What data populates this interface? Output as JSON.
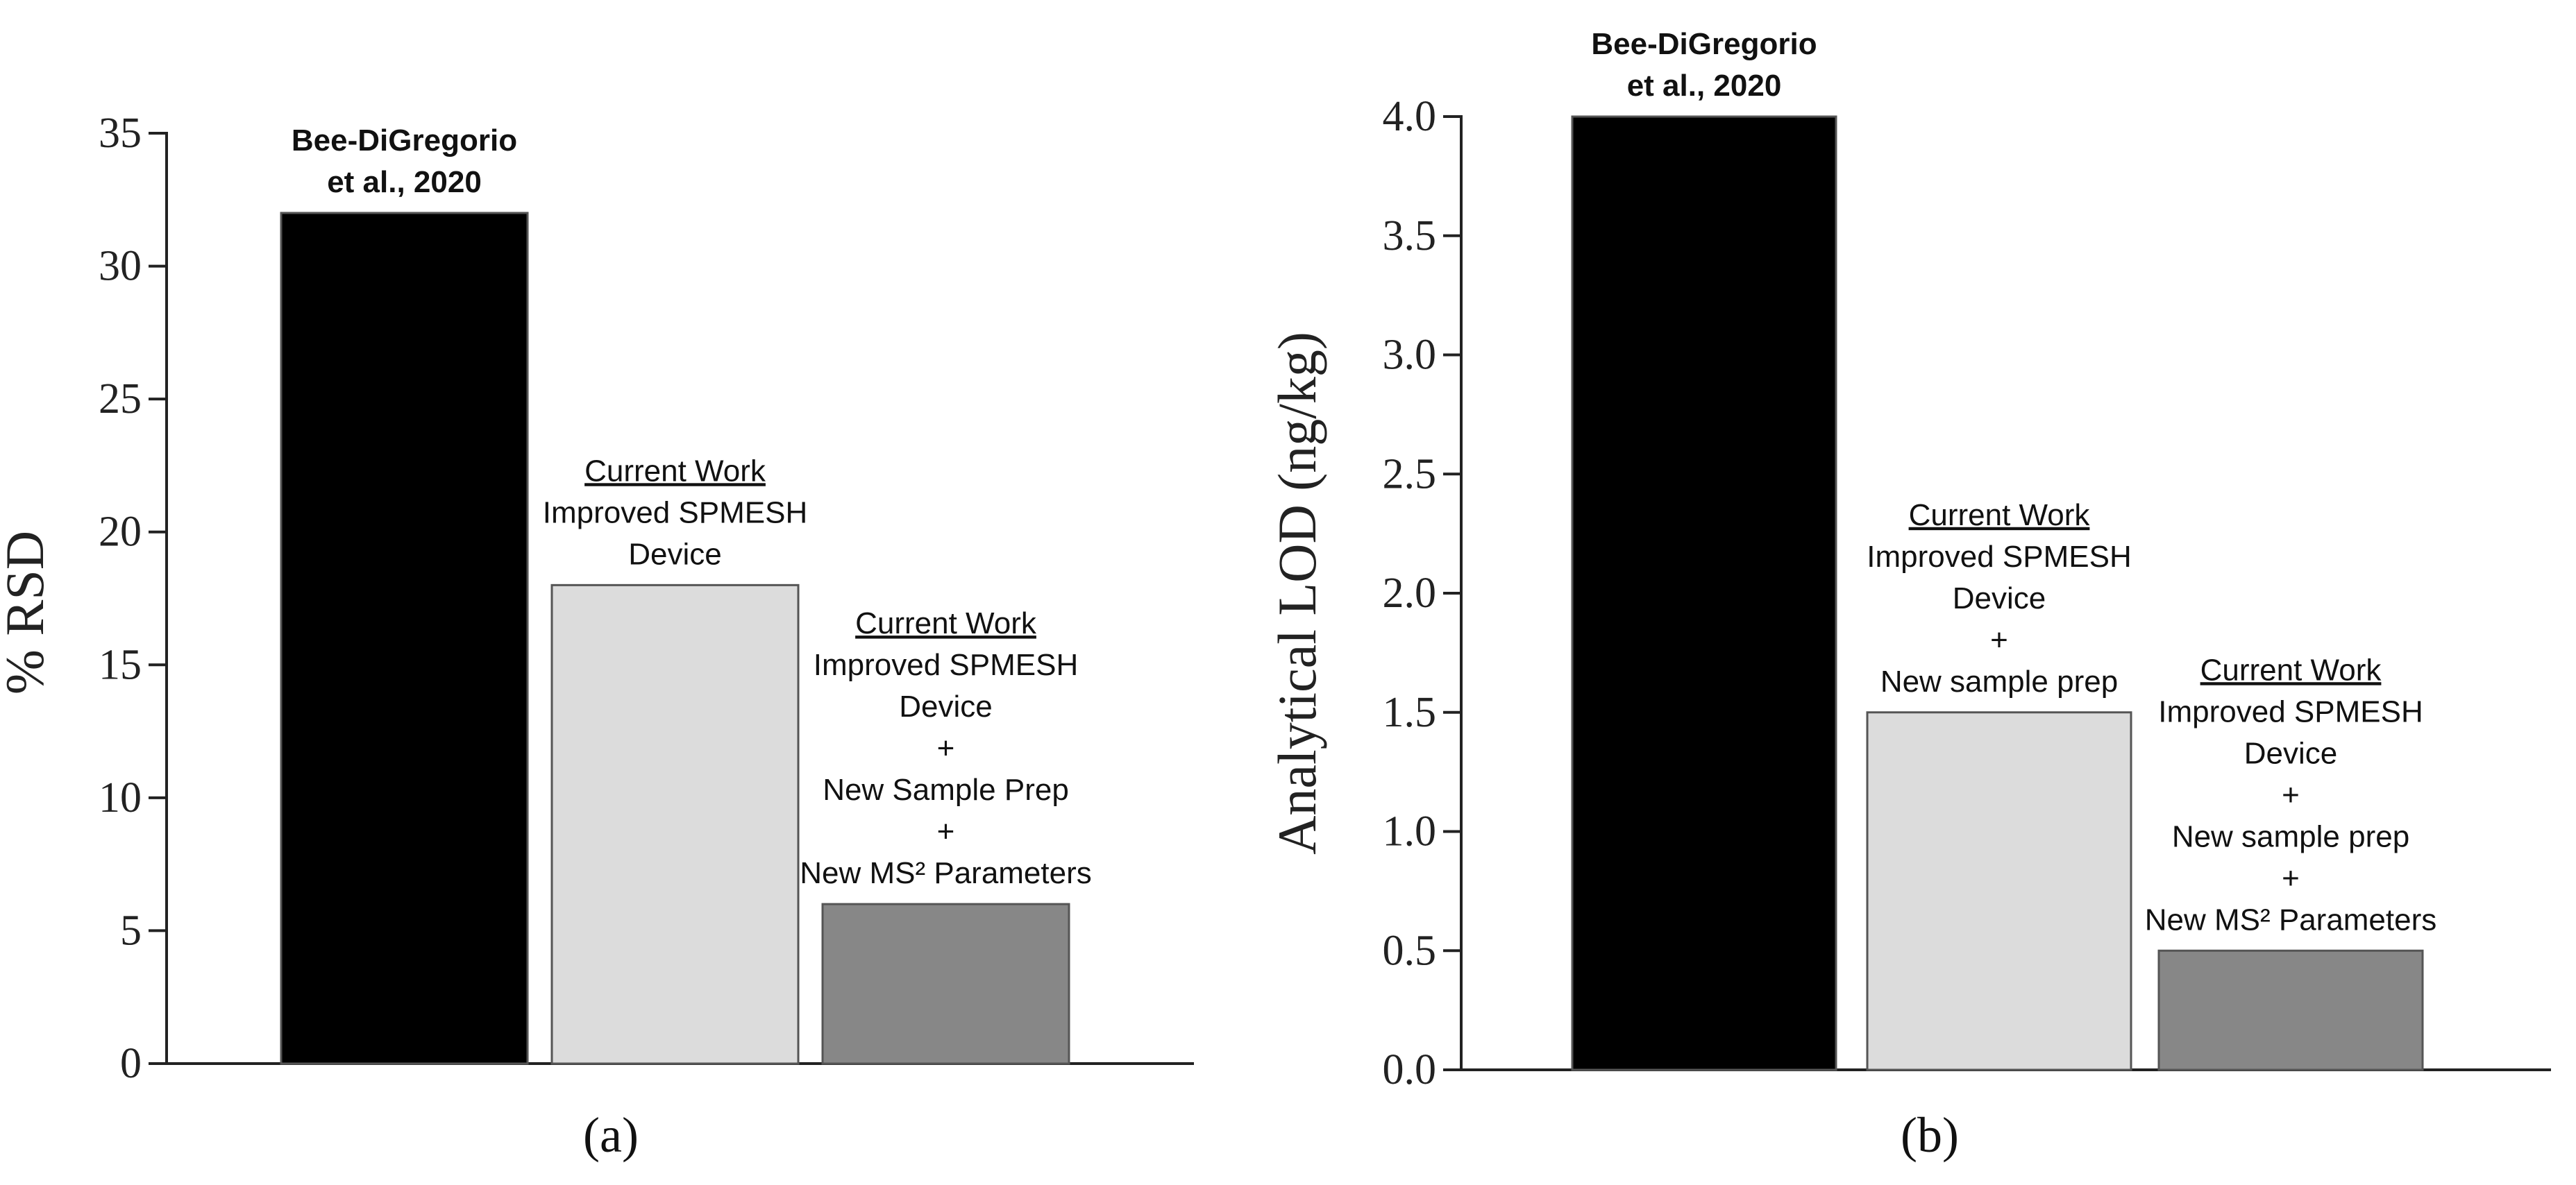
{
  "chart_data": [
    {
      "type": "bar",
      "panel_label": "(a)",
      "ylabel": "% RSD",
      "ylim": [
        0,
        35
      ],
      "yticks": [
        "0",
        "5",
        "10",
        "15",
        "20",
        "25",
        "30",
        "35"
      ],
      "grid": false,
      "legend": "none",
      "categories": [
        [
          "Bee-DiGregorio",
          "et al., 2020"
        ],
        [
          "Current Work",
          "Improved SPMESH",
          "Device"
        ],
        [
          "Current Work",
          "Improved SPMESH",
          "Device",
          "+",
          "New Sample Prep",
          "+",
          "New MS² Parameters"
        ]
      ],
      "values": [
        32,
        18,
        6
      ],
      "colors": [
        "#000000",
        "#dcdcdc",
        "#878787"
      ]
    },
    {
      "type": "bar",
      "panel_label": "(b)",
      "ylabel": "Analytical LOD (ng/kg)",
      "ylim": [
        0,
        4
      ],
      "yticks": [
        "0.0",
        "0.5",
        "1.0",
        "1.5",
        "2.0",
        "2.5",
        "3.0",
        "3.5",
        "4.0"
      ],
      "grid": false,
      "legend": "none",
      "categories": [
        [
          "Bee-DiGregorio",
          "et al., 2020"
        ],
        [
          "Current Work",
          "Improved SPMESH",
          "Device",
          "+",
          "New sample prep"
        ],
        [
          "Current Work",
          "Improved SPMESH",
          "Device",
          "+",
          "New sample prep",
          "+",
          "New MS² Parameters"
        ]
      ],
      "values": [
        4.0,
        1.5,
        0.5
      ],
      "colors": [
        "#000000",
        "#dcdcdc",
        "#878787"
      ]
    }
  ]
}
